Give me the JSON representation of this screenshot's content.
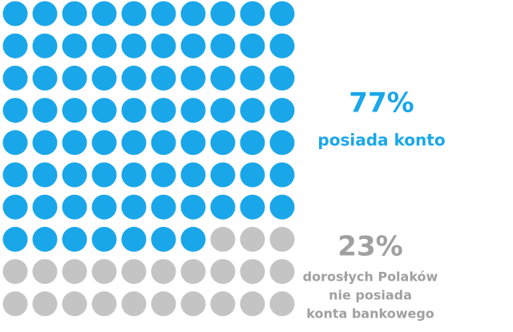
{
  "chart_data": {
    "type": "waffle",
    "values": [
      77,
      23
    ],
    "value_labels": [
      "77%",
      "23%"
    ],
    "labels": [
      [
        "posiada konto"
      ],
      [
        "dorosłych Polaków",
        "nie posiada",
        "konta bankowego"
      ]
    ],
    "colors": [
      "#1aa7e9",
      "#c4c4c4"
    ],
    "label_colors": [
      "#1aa7e9",
      "#a0a0a0"
    ]
  }
}
